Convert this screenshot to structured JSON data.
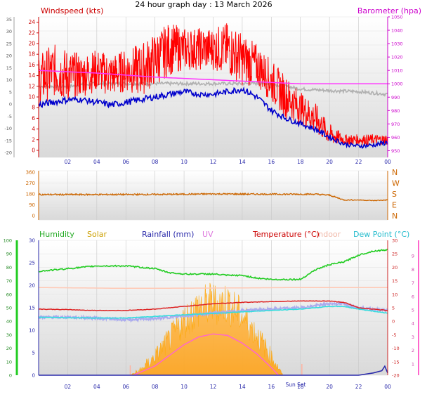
{
  "title": "24 hour graph day : 13 March 2026",
  "colors": {
    "wind_gust": "#ff0000",
    "wind_avg": "#0000cc",
    "wind_grey": "#b0b0b0",
    "barometer": "#ff33ff",
    "direction": "#cc6600",
    "humidity": "#22cc22",
    "solar": "#ffa500",
    "rain": "#2a2aaa",
    "uv": "#ff66cc",
    "temperature": "#dd2222",
    "indoor": "#ffc8b4",
    "dewpoint": "#33dddd",
    "felt": "#aaaaee",
    "plot_bg_top": "#ffffff",
    "plot_bg_bottom": "#d9d9d9"
  },
  "x_tick_labels": [
    "02",
    "04",
    "06",
    "08",
    "10",
    "12",
    "14",
    "16",
    "18",
    "20",
    "22",
    "00"
  ],
  "chart_data": [
    {
      "type": "line",
      "panel": "wind",
      "x_range_hours": [
        0,
        24
      ],
      "y_left_label": "Windspeed (kts)",
      "y_left_ticks": [
        "0",
        "2",
        "4",
        "6",
        "8",
        "10",
        "12",
        "14",
        "16",
        "18",
        "20",
        "22",
        "24"
      ],
      "y_left_range": [
        0,
        25
      ],
      "y_outer_ticks": [
        "-20",
        "-15",
        "-10",
        "-5",
        "0",
        "5",
        "10",
        "15",
        "20",
        "25",
        "30",
        "35"
      ],
      "y_outer_range": [
        -22,
        36
      ],
      "y_right_label": "Barometer (hpa)",
      "y_right_ticks": [
        "950",
        "960",
        "970",
        "980",
        "990",
        "1000",
        "1010",
        "1020",
        "1030",
        "1040",
        "1050"
      ],
      "y_right_range": [
        945,
        1050
      ],
      "series": [
        {
          "key": "gust",
          "x": [
            0,
            1,
            2,
            3,
            4,
            5,
            6,
            7,
            8,
            9,
            10,
            11,
            12,
            13,
            14,
            15,
            16,
            17,
            18,
            19,
            20,
            21,
            22,
            23,
            24
          ],
          "y": [
            13,
            15,
            14,
            14,
            15,
            14,
            15,
            15,
            17,
            19,
            19,
            19,
            19,
            19,
            17,
            16,
            13,
            10,
            8,
            6,
            3,
            2,
            2,
            2,
            2
          ],
          "y_spread": [
            5,
            5,
            5,
            4,
            4,
            4,
            4,
            5,
            5,
            5,
            4,
            4,
            4,
            5,
            5,
            4,
            4,
            4,
            3,
            3,
            2,
            1,
            1,
            1,
            1
          ]
        },
        {
          "key": "avg",
          "x": [
            0,
            1,
            2,
            3,
            4,
            5,
            6,
            7,
            8,
            9,
            10,
            11,
            12,
            13,
            14,
            15,
            16,
            17,
            18,
            19,
            20,
            21,
            22,
            23,
            24
          ],
          "y": [
            8.5,
            9,
            9.5,
            9.5,
            9,
            8.5,
            9,
            9.5,
            10,
            10.5,
            11,
            10.5,
            10.5,
            11,
            11.5,
            10,
            7.5,
            6,
            5,
            4,
            2.5,
            1.2,
            0.8,
            1,
            1.5
          ],
          "y_spread": [
            0.7,
            0.6,
            0.6,
            0.5,
            0.6,
            0.6,
            0.6,
            0.6,
            0.6,
            0.6,
            0.6,
            0.5,
            0.5,
            0.6,
            0.6,
            0.6,
            0.6,
            0.5,
            0.5,
            0.5,
            0.5,
            0.4,
            0.4,
            0.4,
            0.5
          ]
        },
        {
          "key": "grey",
          "x": [
            0,
            2,
            4,
            6,
            8,
            10,
            12,
            14,
            16,
            18,
            20,
            22,
            24
          ],
          "y": [
            12,
            12,
            12.5,
            12.5,
            12.5,
            12.5,
            12.5,
            12.5,
            12.5,
            11.5,
            11.2,
            11,
            10.5
          ],
          "y_spread": [
            0.3,
            0.3,
            0.3,
            0.3,
            0.3,
            0.3,
            0.3,
            0.3,
            0.3,
            0.3,
            0.3,
            0.3,
            0.3
          ]
        },
        {
          "key": "baro",
          "x": [
            0,
            4,
            8,
            12,
            16,
            18,
            24
          ],
          "y": [
            1010,
            1008,
            1005,
            1003,
            1001,
            1000,
            1000
          ],
          "y_spread": [
            0,
            0,
            0,
            0,
            0,
            0,
            0
          ]
        }
      ]
    },
    {
      "type": "line",
      "panel": "direction",
      "x_range_hours": [
        0,
        24
      ],
      "y_left_ticks": [
        "0",
        "90",
        "180",
        "270",
        "360"
      ],
      "y_left_range": [
        0,
        360
      ],
      "y_right_ticks": [
        "N",
        "E",
        "S",
        "W",
        "N"
      ],
      "series": [
        {
          "key": "dir",
          "x": [
            0,
            4,
            8,
            12,
            16,
            19,
            20,
            21,
            22,
            23,
            24
          ],
          "y": [
            175,
            175,
            176,
            180,
            178,
            178,
            170,
            130,
            130,
            125,
            130
          ],
          "y_spread": [
            6,
            6,
            6,
            6,
            6,
            6,
            6,
            4,
            3,
            3,
            3
          ]
        }
      ]
    },
    {
      "type": "area",
      "panel": "environment",
      "x_range_hours": [
        0,
        24
      ],
      "x_tick_extra": "Sun Set",
      "y_left_label": "Humidity",
      "y_left_ticks": [
        "0",
        "10",
        "20",
        "30",
        "40",
        "50",
        "60",
        "70",
        "80",
        "90",
        "100"
      ],
      "y_left_range": [
        0,
        100
      ],
      "y_mid_ticks": [
        "0",
        "5",
        "10",
        "15",
        "20",
        "25",
        "30"
      ],
      "y_mid_range": [
        0,
        30
      ],
      "y_right_ticks": [
        "-20",
        "-15",
        "-10",
        "-5",
        "0",
        "5",
        "10",
        "15",
        "20",
        "25",
        "30"
      ],
      "y_right_range": [
        -20,
        30
      ],
      "y_right2_ticks": [
        "1",
        "2",
        "3",
        "4",
        "5",
        "6",
        "7",
        "8",
        "9"
      ],
      "labels": {
        "solar": "Solar",
        "rain": "Rainfall (mm)",
        "uv": "UV",
        "temp": "Temperature (°C)",
        "indoor": "Indoor",
        "dew": "Dew Point (°C)"
      },
      "series": [
        {
          "key": "hum",
          "x": [
            0,
            1,
            2,
            3,
            4,
            5,
            6,
            7,
            8,
            9,
            10,
            11,
            12,
            13,
            14,
            15,
            16,
            17,
            17.5,
            18,
            19,
            20,
            21,
            22,
            23,
            24
          ],
          "y": [
            77,
            78,
            79,
            80,
            81,
            81,
            81,
            80,
            79,
            76,
            75,
            75,
            75,
            74,
            74,
            72,
            71,
            71,
            71,
            71,
            78,
            82,
            84,
            89,
            92,
            93
          ],
          "y_spread": [
            0.5,
            0.5,
            0.5,
            0.5,
            0.5,
            0.5,
            0.5,
            0.5,
            0.5,
            0.5,
            0.5,
            0.5,
            0.5,
            0.5,
            0.5,
            0.5,
            0.5,
            0.5,
            0.5,
            0.5,
            0.5,
            0.5,
            0.5,
            0.5,
            0.5,
            0.5
          ]
        },
        {
          "key": "indoor",
          "x": [
            0,
            6,
            12,
            18,
            24
          ],
          "y": [
            12.5,
            12.2,
            12.3,
            12.5,
            12.5
          ],
          "y_spread": [
            0,
            0,
            0,
            0,
            0
          ]
        },
        {
          "key": "temp",
          "x": [
            0,
            2,
            4,
            6,
            8,
            10,
            12,
            14,
            16,
            18,
            20,
            21,
            22,
            24
          ],
          "y": [
            4.5,
            4.3,
            4,
            4,
            4.5,
            5.5,
            6.5,
            7,
            7.3,
            7.5,
            7.5,
            7,
            5,
            4
          ],
          "y_spread": [
            0.1,
            0.1,
            0.1,
            0.1,
            0.1,
            0.1,
            0.1,
            0.1,
            0.1,
            0.1,
            0.1,
            0.1,
            0.1,
            0.1
          ]
        },
        {
          "key": "felt",
          "x": [
            0,
            2,
            4,
            6,
            8,
            10,
            12,
            14,
            16,
            18,
            20,
            21,
            22,
            24
          ],
          "y": [
            1.5,
            1.5,
            1.2,
            0.5,
            1,
            2,
            3,
            4,
            4.5,
            5,
            6.5,
            6.5,
            5,
            4
          ],
          "y_spread": [
            0.5,
            0.5,
            0.5,
            0.5,
            0.5,
            0.5,
            0.5,
            0.5,
            0.5,
            0.5,
            0.5,
            0.5,
            0.5,
            0.5
          ]
        },
        {
          "key": "dew",
          "x": [
            0,
            2,
            4,
            6,
            8,
            10,
            12,
            14,
            16,
            18,
            20,
            21,
            22,
            24
          ],
          "y": [
            1.5,
            1.3,
            1.2,
            1.2,
            1.8,
            2.4,
            2.9,
            3.5,
            4,
            4.5,
            5.5,
            5.5,
            4.5,
            3
          ],
          "y_spread": [
            0.1,
            0.1,
            0.1,
            0.1,
            0.1,
            0.1,
            0.1,
            0.1,
            0.1,
            0.1,
            0.1,
            0.1,
            0.1,
            0.1
          ]
        },
        {
          "key": "solar",
          "x": [
            6.3,
            7,
            8,
            9,
            10,
            11,
            12,
            13,
            14,
            15,
            16,
            16.8
          ],
          "y": [
            0,
            1,
            4,
            8,
            12,
            15,
            16,
            16,
            13,
            9,
            4,
            0
          ],
          "y_spread": [
            0,
            1,
            2,
            3,
            4,
            5,
            5,
            5,
            4,
            3,
            2,
            0
          ]
        },
        {
          "key": "uv",
          "x": [
            6.5,
            8,
            9,
            10,
            11,
            12,
            13,
            14,
            15,
            16,
            16.5
          ],
          "y": [
            0,
            0.6,
            1.3,
            2,
            2.5,
            2.7,
            2.6,
            2.1,
            1.4,
            0.5,
            0
          ]
        },
        {
          "key": "rain",
          "x": [
            0,
            20,
            21,
            22,
            23,
            23.6,
            23.8,
            24
          ],
          "y": [
            0,
            0,
            0,
            0,
            0.5,
            1,
            2,
            0.5
          ]
        }
      ]
    }
  ]
}
